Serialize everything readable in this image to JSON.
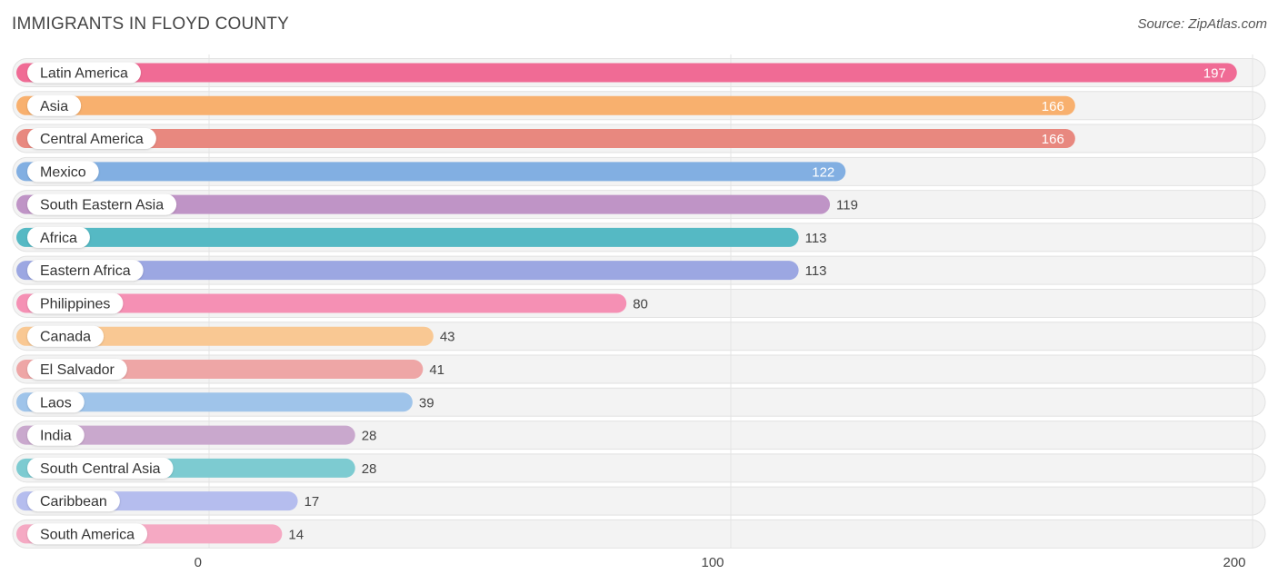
{
  "title": "IMMIGRANTS IN FLOYD COUNTY",
  "source": "Source: ZipAtlas.com",
  "chart_data": {
    "type": "bar",
    "orientation": "horizontal",
    "title": "IMMIGRANTS IN FLOYD COUNTY",
    "xlim": [
      0,
      200
    ],
    "xticks": [
      0,
      100,
      200
    ],
    "grid": true,
    "categories": [
      "Latin America",
      "Asia",
      "Central America",
      "Mexico",
      "South Eastern Asia",
      "Africa",
      "Eastern Africa",
      "Philippines",
      "Canada",
      "El Salvador",
      "Laos",
      "India",
      "South Central Asia",
      "Caribbean",
      "South America"
    ],
    "values": [
      197,
      166,
      166,
      122,
      119,
      113,
      113,
      80,
      43,
      41,
      39,
      28,
      28,
      17,
      14
    ],
    "colors": [
      "#f06b95",
      "#f8b06e",
      "#e8887f",
      "#82afe2",
      "#bf94c6",
      "#55b9c4",
      "#9ca7e2",
      "#f590b4",
      "#f9c893",
      "#eea6a6",
      "#9fc4ea",
      "#c9a8cd",
      "#7dcbd1",
      "#b5bdee",
      "#f5a9c3"
    ]
  }
}
